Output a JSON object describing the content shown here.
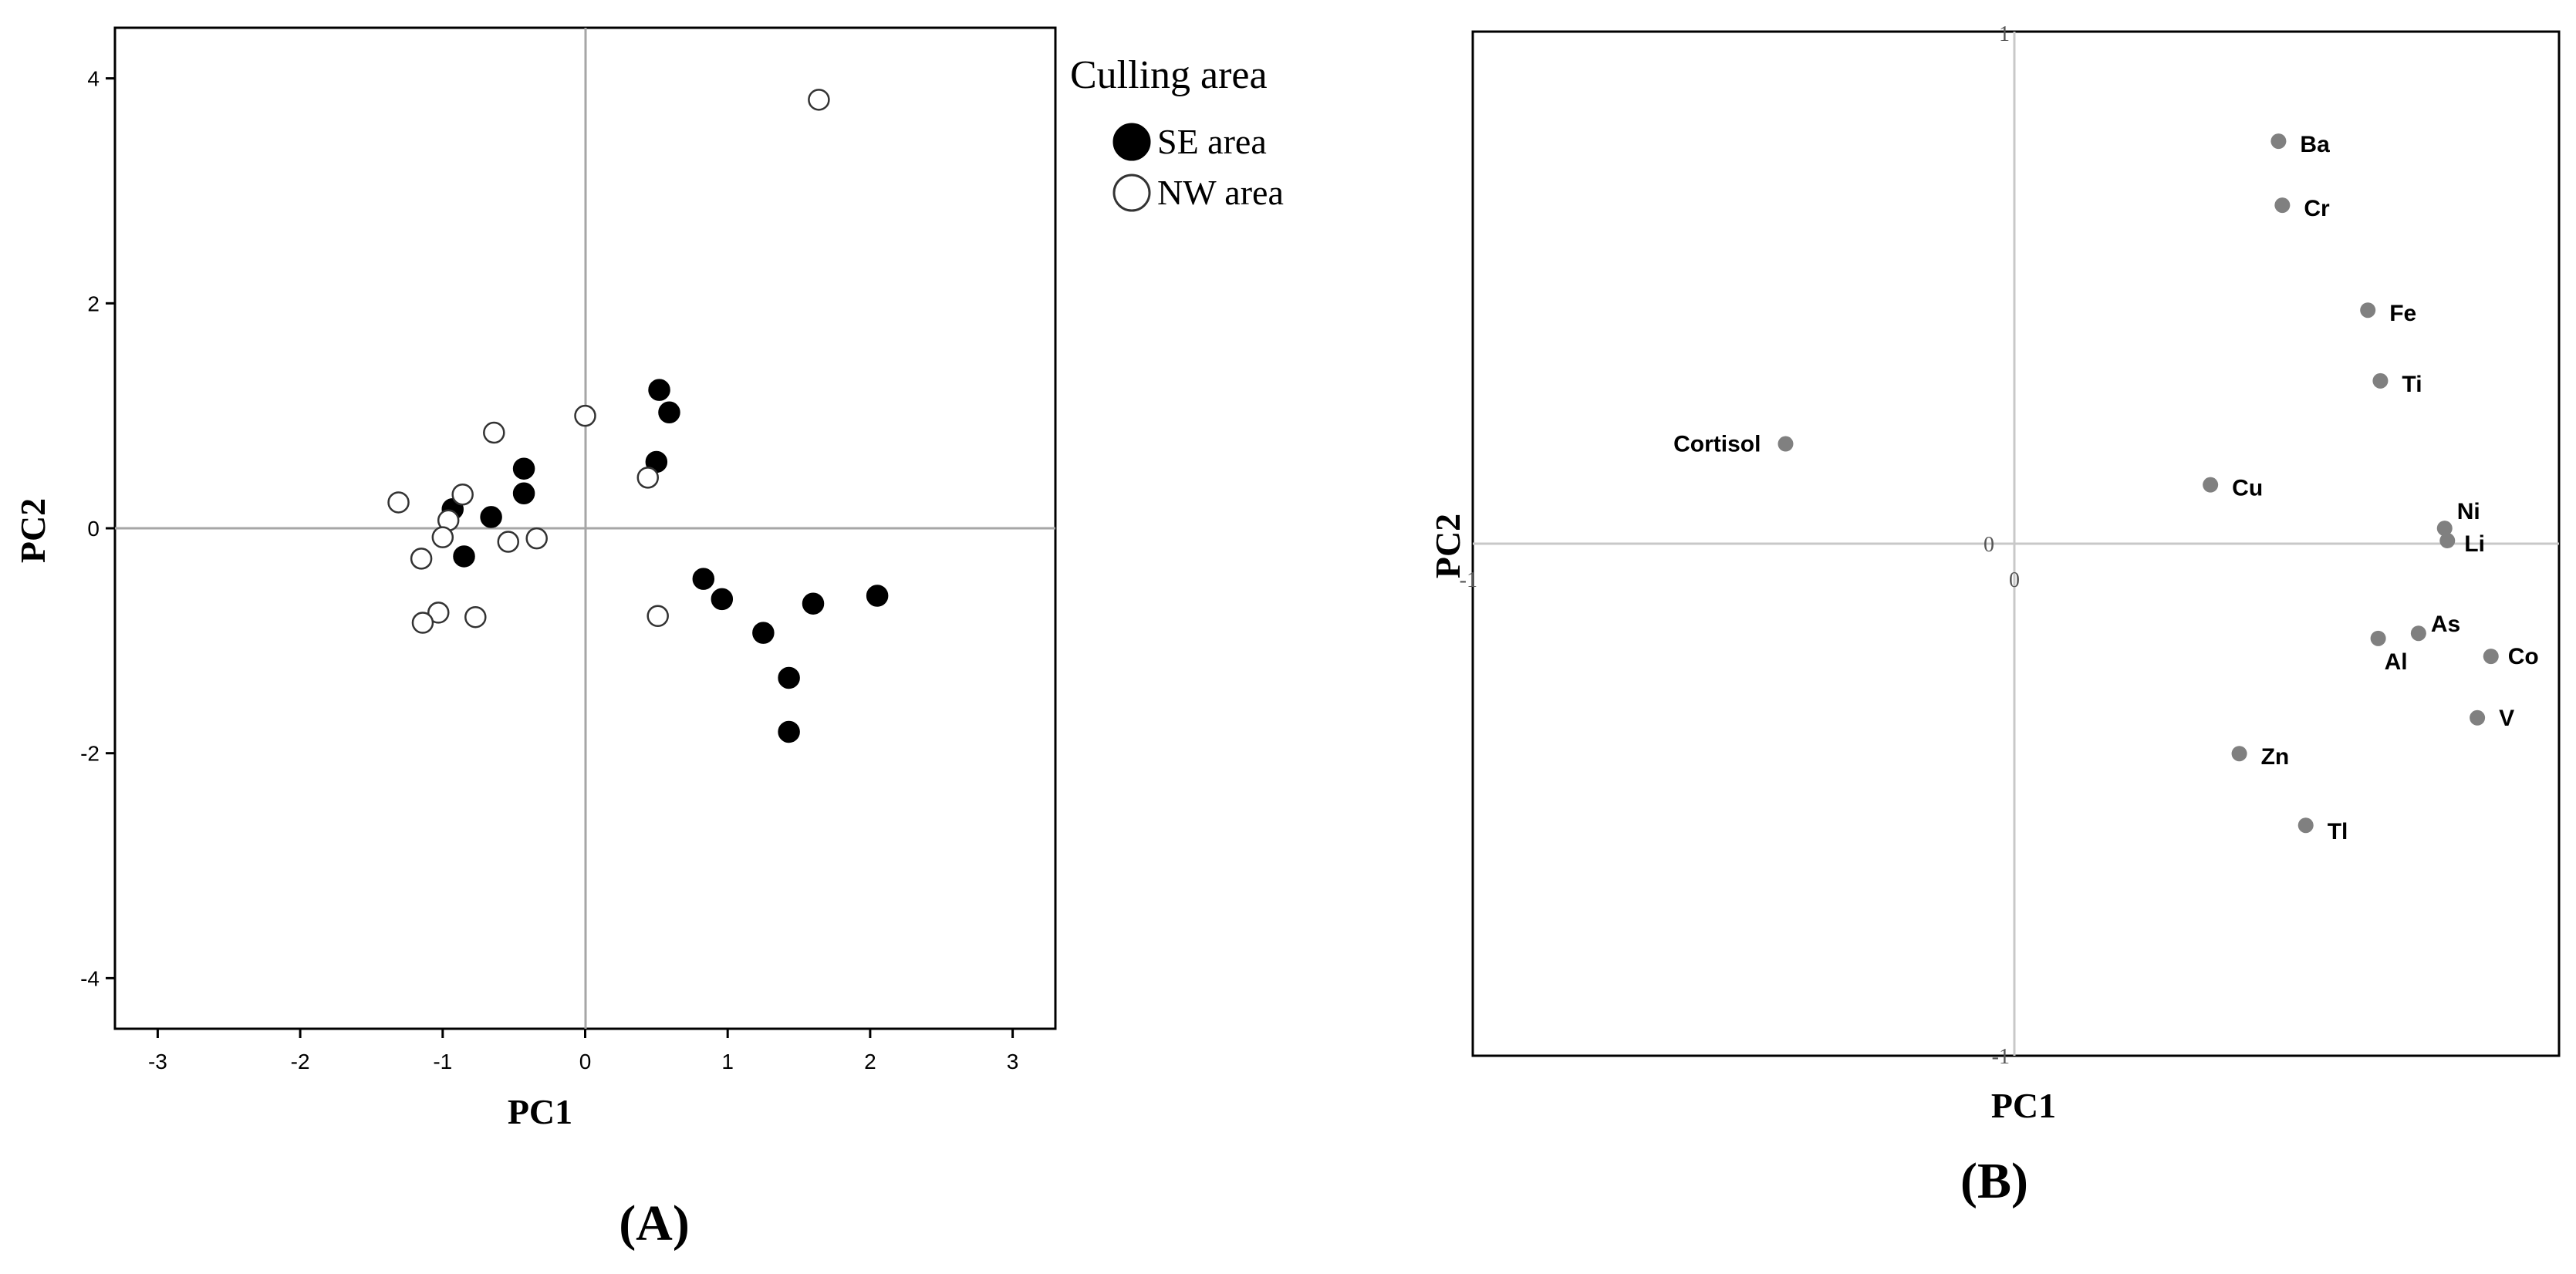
{
  "chart_data": [
    {
      "type": "scatter",
      "panel_label": "(A)",
      "xlabel": "PC1",
      "ylabel": "PC2",
      "xlim": [
        -3.3,
        3.3
      ],
      "ylim": [
        -4.45,
        4.45
      ],
      "xticks": [
        -3,
        -2,
        -1,
        0,
        1,
        2,
        3
      ],
      "yticks": [
        -4,
        -2,
        0,
        2,
        4
      ],
      "reference_lines": {
        "x": 0,
        "y": 0
      },
      "legend": {
        "title": "Culling area",
        "position": "outside-right-top",
        "entries": [
          "SE area",
          "NW area"
        ]
      },
      "series": [
        {
          "name": "SE area",
          "marker": "filled-circle",
          "color": "#000000",
          "points": [
            [
              0.52,
              1.23
            ],
            [
              0.59,
              1.03
            ],
            [
              0.5,
              0.59
            ],
            [
              -0.43,
              0.53
            ],
            [
              -0.43,
              0.31
            ],
            [
              -0.93,
              0.17
            ],
            [
              -0.66,
              0.1
            ],
            [
              -0.85,
              -0.25
            ],
            [
              0.83,
              -0.45
            ],
            [
              0.96,
              -0.63
            ],
            [
              1.6,
              -0.67
            ],
            [
              2.05,
              -0.6
            ],
            [
              1.25,
              -0.93
            ],
            [
              1.43,
              -1.33
            ],
            [
              1.43,
              -1.81
            ]
          ]
        },
        {
          "name": "NW area",
          "marker": "open-circle",
          "color": "#000000",
          "points": [
            [
              1.64,
              3.81
            ],
            [
              0.0,
              1.0
            ],
            [
              -0.64,
              0.85
            ],
            [
              0.44,
              0.45
            ],
            [
              -1.31,
              0.23
            ],
            [
              -0.86,
              0.3
            ],
            [
              -0.96,
              0.07
            ],
            [
              -1.0,
              -0.08
            ],
            [
              -0.54,
              -0.12
            ],
            [
              -0.34,
              -0.09
            ],
            [
              -1.15,
              -0.27
            ],
            [
              -1.03,
              -0.75
            ],
            [
              -1.14,
              -0.84
            ],
            [
              -0.77,
              -0.79
            ],
            [
              0.51,
              -0.78
            ]
          ]
        }
      ]
    },
    {
      "type": "scatter",
      "panel_label": "(B)",
      "xlabel": "PC1",
      "ylabel": "PC2",
      "xlim": [
        -1.0,
        1.0
      ],
      "ylim": [
        -1.0,
        1.0
      ],
      "xtick_labels": [
        "-1",
        "0"
      ],
      "ytick_labels": [
        "1",
        "0",
        "-1"
      ],
      "reference_lines": {
        "x": 0,
        "y": 0
      },
      "color": "#808080",
      "points": [
        {
          "label": "Ba",
          "x": 0.485,
          "y": 0.786
        },
        {
          "label": "Cr",
          "x": 0.492,
          "y": 0.661
        },
        {
          "label": "Fe",
          "x": 0.649,
          "y": 0.456
        },
        {
          "label": "Ti",
          "x": 0.672,
          "y": 0.318
        },
        {
          "label": "Cortisol",
          "x": -0.42,
          "y": 0.195
        },
        {
          "label": "Cu",
          "x": 0.36,
          "y": 0.115
        },
        {
          "label": "Ni",
          "x": 0.79,
          "y": 0.03
        },
        {
          "label": "Li",
          "x": 0.795,
          "y": 0.006
        },
        {
          "label": "As",
          "x": 0.742,
          "y": -0.175
        },
        {
          "label": "Al",
          "x": 0.668,
          "y": -0.185
        },
        {
          "label": "Co",
          "x": 0.875,
          "y": -0.22
        },
        {
          "label": "V",
          "x": 0.85,
          "y": -0.34
        },
        {
          "label": "Zn",
          "x": 0.413,
          "y": -0.41
        },
        {
          "label": "Tl",
          "x": 0.535,
          "y": -0.55
        }
      ]
    }
  ]
}
